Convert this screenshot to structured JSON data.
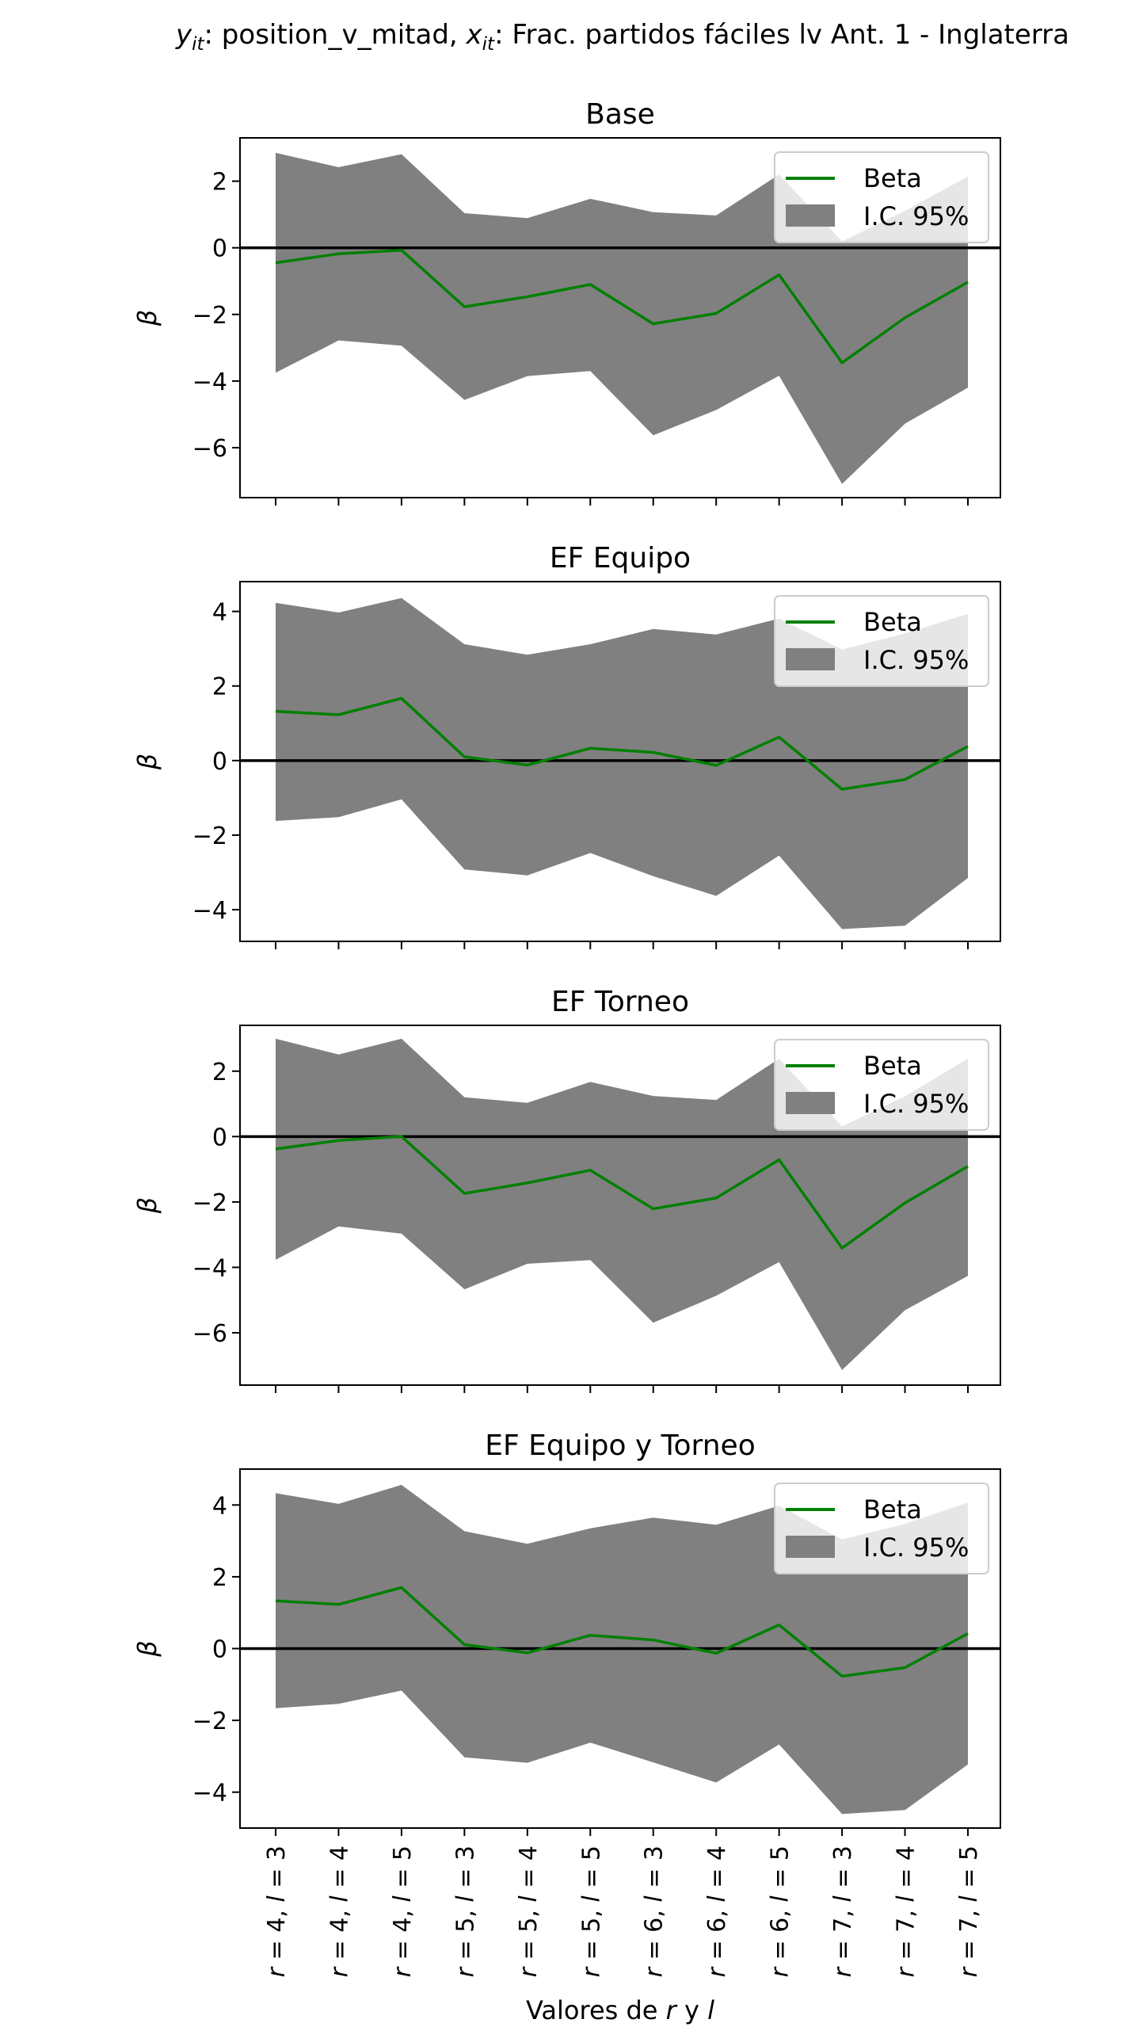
{
  "figure_title": {
    "y_sym": "y",
    "y_sub": "it",
    "y_text": ": position_v_mitad, ",
    "x_sym": "x",
    "x_sub": "it",
    "x_text": ": Frac. partidos fáciles lv Ant. 1 - Inglaterra"
  },
  "colors": {
    "beta": "#008000",
    "ci": "#808080",
    "zero_line": "#000000"
  },
  "legend_location": "top-right",
  "chart_data": [
    {
      "type": "line",
      "title": "Base",
      "ylabel": "β",
      "xlabel": "",
      "ylim": [
        -7.5,
        3.3
      ],
      "yticks": [
        -6,
        -4,
        -2,
        0,
        2
      ],
      "categories": [
        "r = 4, l = 3",
        "r = 4, l = 4",
        "r = 4, l = 5",
        "r = 5, l = 3",
        "r = 5, l = 4",
        "r = 5, l = 5",
        "r = 6, l = 3",
        "r = 6, l = 4",
        "r = 6, l = 5",
        "r = 7, l = 3",
        "r = 7, l = 4",
        "r = 7, l = 5"
      ],
      "series": [
        {
          "name": "Beta",
          "kind": "line",
          "values": [
            -0.45,
            -0.18,
            -0.07,
            -1.77,
            -1.47,
            -1.1,
            -2.28,
            -1.97,
            -0.81,
            -3.45,
            -2.1,
            -1.03
          ]
        },
        {
          "name": "I.C. 95%",
          "kind": "band",
          "lower": [
            -3.75,
            -2.78,
            -2.94,
            -4.57,
            -3.85,
            -3.7,
            -5.63,
            -4.87,
            -3.84,
            -7.09,
            -5.28,
            -4.2
          ],
          "upper": [
            2.85,
            2.42,
            2.81,
            1.04,
            0.89,
            1.47,
            1.07,
            0.97,
            2.2,
            0.19,
            1.11,
            2.14
          ]
        }
      ],
      "hline": 0
    },
    {
      "type": "line",
      "title": "EF Equipo",
      "ylabel": "β",
      "xlabel": "",
      "ylim": [
        -4.85,
        4.8
      ],
      "yticks": [
        -4,
        -2,
        0,
        2,
        4
      ],
      "categories": [
        "r = 4, l = 3",
        "r = 4, l = 4",
        "r = 4, l = 5",
        "r = 5, l = 3",
        "r = 5, l = 4",
        "r = 5, l = 5",
        "r = 6, l = 3",
        "r = 6, l = 4",
        "r = 6, l = 5",
        "r = 7, l = 3",
        "r = 7, l = 4",
        "r = 7, l = 5"
      ],
      "series": [
        {
          "name": "Beta",
          "kind": "line",
          "values": [
            1.32,
            1.23,
            1.67,
            0.1,
            -0.12,
            0.33,
            0.22,
            -0.13,
            0.63,
            -0.77,
            -0.51,
            0.38
          ]
        },
        {
          "name": "I.C. 95%",
          "kind": "band",
          "lower": [
            -1.62,
            -1.52,
            -1.04,
            -2.92,
            -3.08,
            -2.48,
            -3.1,
            -3.63,
            -2.55,
            -4.52,
            -4.43,
            -3.15
          ],
          "upper": [
            4.23,
            3.97,
            4.36,
            3.12,
            2.84,
            3.12,
            3.53,
            3.38,
            3.81,
            2.98,
            3.41,
            3.93
          ]
        }
      ],
      "hline": 0
    },
    {
      "type": "line",
      "title": "EF Torneo",
      "ylabel": "β",
      "xlabel": "",
      "ylim": [
        -7.6,
        3.4
      ],
      "yticks": [
        -6,
        -4,
        -2,
        0,
        2
      ],
      "categories": [
        "r = 4, l = 3",
        "r = 4, l = 4",
        "r = 4, l = 5",
        "r = 5, l = 3",
        "r = 5, l = 4",
        "r = 5, l = 5",
        "r = 6, l = 3",
        "r = 6, l = 4",
        "r = 6, l = 5",
        "r = 7, l = 3",
        "r = 7, l = 4",
        "r = 7, l = 5"
      ],
      "series": [
        {
          "name": "Beta",
          "kind": "line",
          "values": [
            -0.38,
            -0.12,
            0.0,
            -1.74,
            -1.42,
            -1.03,
            -2.21,
            -1.88,
            -0.71,
            -3.41,
            -2.03,
            -0.91
          ]
        },
        {
          "name": "I.C. 95%",
          "kind": "band",
          "lower": [
            -3.77,
            -2.75,
            -2.97,
            -4.67,
            -3.89,
            -3.78,
            -5.69,
            -4.87,
            -3.84,
            -7.14,
            -5.31,
            -4.26
          ],
          "upper": [
            2.99,
            2.51,
            2.99,
            1.2,
            1.03,
            1.67,
            1.24,
            1.12,
            2.38,
            0.31,
            1.23,
            2.38
          ]
        }
      ],
      "hline": 0
    },
    {
      "type": "line",
      "title": "EF Equipo y Torneo",
      "ylabel": "β",
      "xlabel": "Valores de r y l",
      "ylim": [
        -5.0,
        5.0
      ],
      "yticks": [
        -4,
        -2,
        0,
        2,
        4
      ],
      "categories": [
        "r = 4, l = 3",
        "r = 4, l = 4",
        "r = 4, l = 5",
        "r = 5, l = 3",
        "r = 5, l = 4",
        "r = 5, l = 5",
        "r = 6, l = 3",
        "r = 6, l = 4",
        "r = 6, l = 5",
        "r = 7, l = 3",
        "r = 7, l = 4",
        "r = 7, l = 5"
      ],
      "series": [
        {
          "name": "Beta",
          "kind": "line",
          "values": [
            1.33,
            1.23,
            1.7,
            0.11,
            -0.12,
            0.37,
            0.24,
            -0.13,
            0.66,
            -0.77,
            -0.53,
            0.42
          ]
        },
        {
          "name": "I.C. 95%",
          "kind": "band",
          "lower": [
            -1.66,
            -1.54,
            -1.17,
            -3.03,
            -3.18,
            -2.62,
            -3.17,
            -3.73,
            -2.67,
            -4.61,
            -4.5,
            -3.23
          ],
          "upper": [
            4.33,
            4.03,
            4.56,
            3.27,
            2.92,
            3.35,
            3.65,
            3.45,
            3.98,
            3.04,
            3.47,
            4.07
          ]
        }
      ],
      "hline": 0
    }
  ]
}
